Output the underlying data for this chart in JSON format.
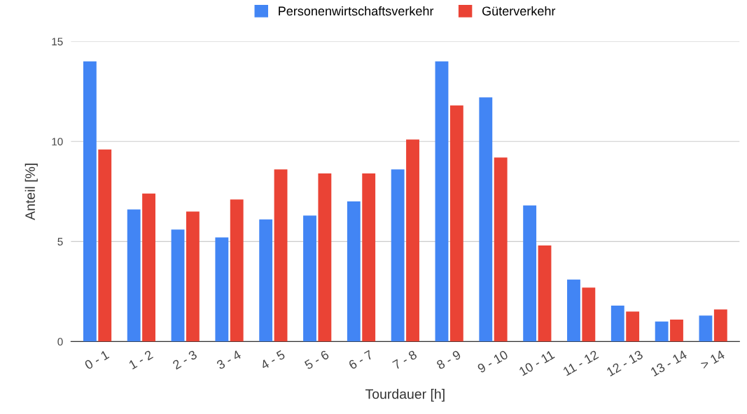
{
  "chart_data": {
    "type": "bar",
    "xlabel": "Tourdauer [h]",
    "ylabel": "Anteil [%]",
    "categories": [
      "0 - 1",
      "1 - 2",
      "2 - 3",
      "3 - 4",
      "4 - 5",
      "5 - 6",
      "6 - 7",
      "7 - 8",
      "8 - 9",
      "9 - 10",
      "10 - 11",
      "11 - 12",
      "12 - 13",
      "13 - 14",
      "> 14"
    ],
    "series": [
      {
        "name": "Personenwirtschaftsverkehr",
        "color": "#4285f4",
        "values": [
          14.0,
          6.6,
          5.6,
          5.2,
          6.1,
          6.3,
          7.0,
          8.6,
          14.0,
          12.2,
          6.8,
          3.1,
          1.8,
          1.0,
          1.3
        ]
      },
      {
        "name": "Güterverkehr",
        "color": "#ea4335",
        "values": [
          9.6,
          7.4,
          6.5,
          7.1,
          8.6,
          8.4,
          8.4,
          10.1,
          11.8,
          9.2,
          4.8,
          2.7,
          1.5,
          1.1,
          1.6
        ]
      }
    ],
    "ylim": [
      0,
      15
    ],
    "yticks": [
      0,
      5,
      10,
      15
    ],
    "grid": "y",
    "legend": "top"
  }
}
